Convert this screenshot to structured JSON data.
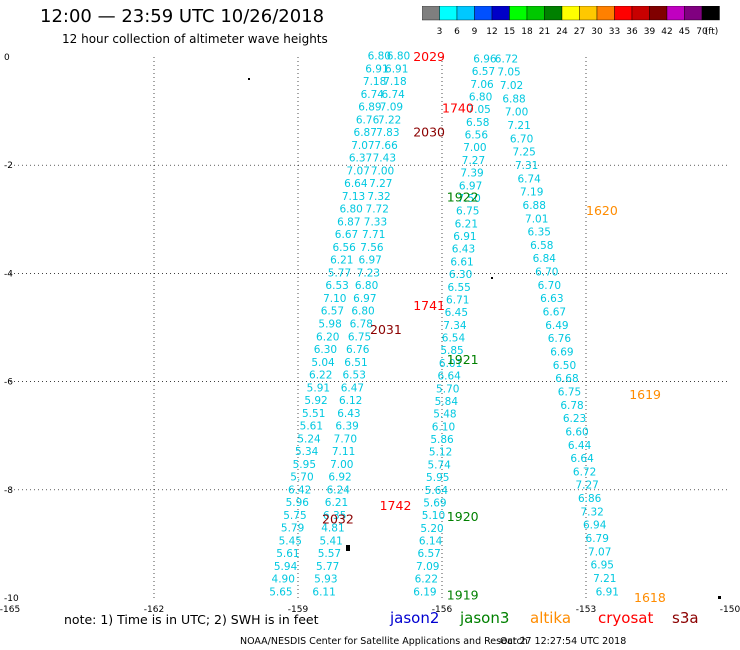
{
  "header": {
    "title": "12:00 — 23:59 UTC 10/26/2018",
    "subtitle": "12 hour collection of altimeter wave heights"
  },
  "scale": {
    "unit_label": "(ft)",
    "ticks": [
      "3",
      "6",
      "9",
      "12",
      "15",
      "18",
      "21",
      "24",
      "27",
      "30",
      "33",
      "36",
      "39",
      "42",
      "45",
      "70"
    ],
    "colors": [
      "#7f7f7f",
      "#00ffff",
      "#00c8ff",
      "#0050ff",
      "#0000c8",
      "#00ff00",
      "#00c800",
      "#008000",
      "#ffff00",
      "#ffc800",
      "#ff8000",
      "#ff0000",
      "#c80000",
      "#800000",
      "#c000c0",
      "#800080",
      "#000000"
    ]
  },
  "chart_data": {
    "type": "scatter",
    "title": "12:00 — 23:59 UTC 10/26/2018",
    "xlim": [
      -165,
      -150
    ],
    "ylim": [
      -10,
      0
    ],
    "x_ticks": [
      "-165",
      "-162",
      "-159",
      "-156",
      "-153",
      "-150"
    ],
    "y_ticks": [
      "0",
      "-2",
      "-4",
      "-6",
      "-8",
      "-10"
    ],
    "grid": true,
    "series": [
      {
        "name": "jason2",
        "color": "#0000d0",
        "values": []
      },
      {
        "name": "jason3",
        "color": "#008000",
        "tracks": [
          {
            "label": "1922",
            "x": -155.9,
            "y": -2.6
          },
          {
            "label": "1921",
            "x": -155.9,
            "y": -5.6
          },
          {
            "label": "1920",
            "x": -155.9,
            "y": -8.5
          },
          {
            "label": "1919",
            "x": -155.9,
            "y": -9.95
          }
        ]
      },
      {
        "name": "altika",
        "color": "#ff8c00",
        "tracks": [
          {
            "label": "1620",
            "x": -153.0,
            "y": -2.85
          },
          {
            "label": "1619",
            "x": -152.1,
            "y": -6.25
          },
          {
            "label": "1618",
            "x": -152.0,
            "y": -10.0
          }
        ]
      },
      {
        "name": "cryosat",
        "color": "#ff0000",
        "tracks": [
          {
            "label": "2029",
            "x": -156.6,
            "y": 0.0
          },
          {
            "label": "1740",
            "x": -156.0,
            "y": -0.95
          },
          {
            "label": "1741",
            "x": -156.6,
            "y": -4.6
          },
          {
            "label": "1742",
            "x": -157.3,
            "y": -8.3
          }
        ]
      },
      {
        "name": "s3a",
        "color": "#8b0000",
        "tracks": [
          {
            "label": "2030",
            "x": -156.6,
            "y": -1.4
          },
          {
            "label": "2031",
            "x": -157.5,
            "y": -5.05
          },
          {
            "label": "2032",
            "x": -158.5,
            "y": -8.55
          }
        ]
      }
    ],
    "cyan_column_values": {
      "track_a_left": [
        "6.80",
        "6.91",
        "7.18",
        "6.74",
        "6.89",
        "6.76",
        "6.87",
        "7.07",
        "6.37",
        "7.07",
        "6.64",
        "7.13",
        "6.80",
        "6.87",
        "6.67",
        "6.56",
        "6.21",
        "5.77",
        "6.53",
        "7.10",
        "6.57",
        "5.98",
        "6.20",
        "6.30",
        "5.04",
        "6.22",
        "5.91",
        "5.92",
        "5.51",
        "5.61",
        "5.24",
        "5.34",
        "5.95",
        "5.70",
        "6.42",
        "5.96",
        "5.75",
        "5.79",
        "5.45",
        "5.61",
        "5.94",
        "4.90",
        "5.65"
      ],
      "track_a_right": [
        "6.80",
        "6.91",
        "7.18",
        "6.74",
        "7.09",
        "7.22",
        "7.83",
        "7.66",
        "7.43",
        "7.00",
        "7.27",
        "7.32",
        "7.72",
        "7.33",
        "7.71",
        "7.56",
        "6.97",
        "7.23",
        "6.80",
        "6.97",
        "6.80",
        "6.78",
        "6.75",
        "6.76",
        "6.51",
        "6.53",
        "6.47",
        "6.12",
        "6.43",
        "6.39",
        "7.70",
        "7.11",
        "7.00",
        "6.92",
        "6.24",
        "6.21",
        "6.35",
        "4.81",
        "5.41",
        "5.57",
        "5.77",
        "5.93",
        "6.11"
      ],
      "track_b_left": [
        "6.96",
        "6.57",
        "7.06",
        "6.80",
        "7.05",
        "6.58",
        "6.56",
        "7.00",
        "7.27",
        "7.39",
        "6.97",
        "7.50",
        "6.75",
        "6.21",
        "6.91",
        "6.43",
        "6.61",
        "6.30",
        "6.55",
        "6.71",
        "6.45",
        "7.34",
        "6.54",
        "5.85",
        "6.01",
        "6.64",
        "5.70",
        "5.84",
        "5.48",
        "6.10",
        "5.86",
        "5.12",
        "5.74",
        "5.95",
        "5.64",
        "5.69",
        "5.10",
        "5.20",
        "6.14",
        "6.57",
        "7.09",
        "6.22",
        "6.19"
      ],
      "track_b_right": [
        "6.72",
        "7.05",
        "7.02",
        "6.88",
        "7.00",
        "7.21",
        "6.70",
        "7.25",
        "7.31",
        "6.74",
        "7.19",
        "6.88",
        "7.01",
        "6.35",
        "6.58",
        "6.84",
        "6.70",
        "6.70",
        "6.63",
        "6.67",
        "6.49",
        "6.76",
        "6.69",
        "6.50",
        "6.68",
        "6.75",
        "6.78",
        "6.23",
        "6.60",
        "6.44",
        "6.64",
        "6.72",
        "7.27",
        "6.86",
        "7.32",
        "6.94",
        "6.79",
        "7.07",
        "6.95",
        "7.21",
        "6.91"
      ]
    }
  },
  "footer": {
    "note": "note: 1) Time is in UTC; 2) SWH is in feet",
    "credit": "NOAA/NESDIS Center for Satellite Applications and Research",
    "timestamp": "Oct 27 12:27:54 UTC 2018",
    "sat_jason2": "jason2",
    "sat_jason3": "jason3",
    "sat_altika": "altika",
    "sat_cryosat": "cryosat",
    "sat_s3a": "s3a"
  }
}
